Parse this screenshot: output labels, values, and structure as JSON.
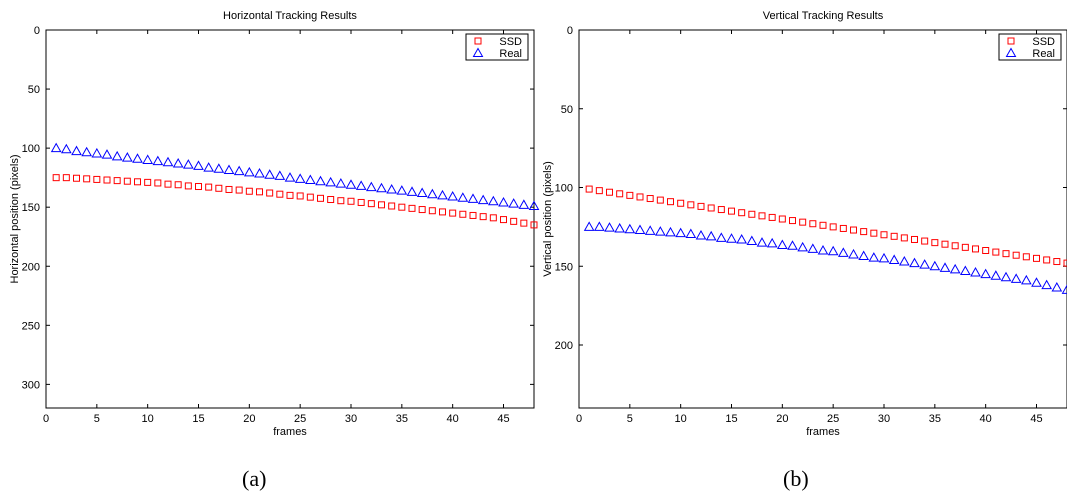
{
  "chart_data": [
    {
      "type": "scatter",
      "title": "Horizontal Tracking Results",
      "xlabel": "frames",
      "ylabel": "Horizontal position (pixels)",
      "xlim": [
        0,
        48
      ],
      "ylim": [
        0,
        320
      ],
      "y_reversed": true,
      "xticks": [
        0,
        5,
        10,
        15,
        20,
        25,
        30,
        35,
        40,
        45
      ],
      "yticks": [
        0,
        50,
        100,
        150,
        200,
        250,
        300
      ],
      "grid": false,
      "legend_position": "top-right",
      "x": [
        1,
        2,
        3,
        4,
        5,
        6,
        7,
        8,
        9,
        10,
        11,
        12,
        13,
        14,
        15,
        16,
        17,
        18,
        19,
        20,
        21,
        22,
        23,
        24,
        25,
        26,
        27,
        28,
        29,
        30,
        31,
        32,
        33,
        34,
        35,
        36,
        37,
        38,
        39,
        40,
        41,
        42,
        43,
        44,
        45,
        46,
        47,
        48
      ],
      "series": [
        {
          "name": "SSD",
          "marker": "square",
          "color": "#ff0000",
          "values": [
            125,
            125,
            125.5,
            126,
            126.5,
            127,
            127.5,
            128,
            128.5,
            129,
            129.5,
            130.5,
            131,
            132,
            132.5,
            133,
            134,
            135,
            135.5,
            136.5,
            137,
            138,
            139,
            140,
            140.5,
            141.5,
            142.5,
            143.5,
            144.5,
            145,
            146,
            147,
            148,
            149,
            150,
            151,
            152,
            153,
            154,
            155,
            156,
            157,
            158,
            159,
            160.5,
            162,
            163.5,
            165
          ]
        },
        {
          "name": "Real",
          "marker": "triangle",
          "color": "#0000ff",
          "values": [
            100,
            101,
            102.5,
            103.5,
            104.5,
            105.5,
            107,
            108,
            109,
            110,
            111,
            112,
            113,
            114,
            115,
            116.5,
            117.5,
            118.5,
            119.5,
            120.5,
            121.5,
            122.5,
            123.5,
            125,
            126,
            127,
            128,
            129,
            130,
            131,
            132,
            133,
            134,
            135,
            136,
            137,
            138,
            139,
            140,
            141,
            142,
            143,
            144,
            145,
            146,
            147,
            148,
            149
          ]
        }
      ]
    },
    {
      "type": "scatter",
      "title": "Vertical Tracking Results",
      "xlabel": "frames",
      "ylabel": "Vertical position (pixels)",
      "xlim": [
        0,
        48
      ],
      "ylim": [
        0,
        240
      ],
      "y_reversed": true,
      "xticks": [
        0,
        5,
        10,
        15,
        20,
        25,
        30,
        35,
        40,
        45
      ],
      "yticks": [
        0,
        50,
        100,
        150,
        200
      ],
      "grid": false,
      "legend_position": "top-right",
      "x": [
        1,
        2,
        3,
        4,
        5,
        6,
        7,
        8,
        9,
        10,
        11,
        12,
        13,
        14,
        15,
        16,
        17,
        18,
        19,
        20,
        21,
        22,
        23,
        24,
        25,
        26,
        27,
        28,
        29,
        30,
        31,
        32,
        33,
        34,
        35,
        36,
        37,
        38,
        39,
        40,
        41,
        42,
        43,
        44,
        45,
        46,
        47,
        48
      ],
      "series": [
        {
          "name": "SSD",
          "marker": "square",
          "color": "#ff0000",
          "values": [
            101,
            102,
            103,
            104,
            105,
            106,
            107,
            108,
            109,
            110,
            111,
            112,
            113,
            114,
            115,
            116,
            117,
            118,
            119,
            120,
            121,
            122,
            123,
            124,
            125,
            126,
            127,
            128,
            129,
            130,
            131,
            132,
            133,
            134,
            135,
            136,
            137,
            138,
            139,
            140,
            141,
            142,
            143,
            144,
            145,
            146,
            147,
            148
          ]
        },
        {
          "name": "Real",
          "marker": "triangle",
          "color": "#0000ff",
          "values": [
            125,
            125,
            125.5,
            126,
            126.5,
            127,
            127.5,
            128,
            128.5,
            129,
            129.5,
            130.5,
            131,
            132,
            132.5,
            133,
            134,
            135,
            135.5,
            136.5,
            137,
            138,
            139,
            140,
            140.5,
            141.5,
            142.5,
            143.5,
            144.5,
            145,
            146,
            147,
            148,
            149,
            150,
            151,
            152,
            153,
            154,
            155,
            156,
            157,
            158,
            159,
            160.5,
            162,
            163.5,
            165
          ]
        }
      ]
    }
  ],
  "captions": [
    "(a)",
    "(b)"
  ]
}
